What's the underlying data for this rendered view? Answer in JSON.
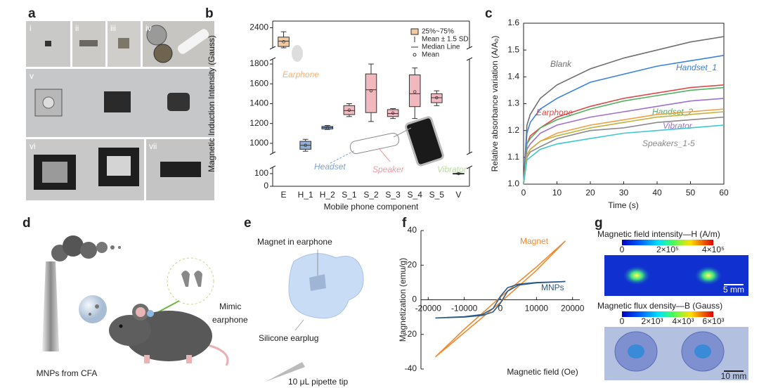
{
  "panel_labels": [
    "a",
    "b",
    "c",
    "d",
    "e",
    "f",
    "g"
  ],
  "panel_a": {
    "photo_labels": [
      "i",
      "ii",
      "iii",
      "iv",
      "v",
      "vi",
      "vii"
    ]
  },
  "chart_data": [
    {
      "type": "box",
      "xlabel": "Mobile phone component",
      "ylabel": "Magnetic Induction Intensity (Gauss)",
      "categories": [
        "E",
        "H_1",
        "H_2",
        "S_1",
        "S_2",
        "S_3",
        "S_4",
        "S_5",
        "V"
      ],
      "colors": [
        "#f5c9a0",
        "#8fb0d8",
        "#8fb0d8",
        "#f2b8bf",
        "#f2b8bf",
        "#f2b8bf",
        "#f2b8bf",
        "#f2b8bf",
        "#c8e4b0"
      ],
      "boxes": [
        {
          "q1": 2260,
          "q3": 2330,
          "median": 2300,
          "mean": 2295,
          "whisker_low": 2250,
          "whisker_high": 2370
        },
        {
          "q1": 940,
          "q3": 1020,
          "median": 980,
          "mean": 980,
          "whisker_low": 920,
          "whisker_high": 1040
        },
        {
          "q1": 1145,
          "q3": 1170,
          "median": 1160,
          "mean": 1158,
          "whisker_low": 1140,
          "whisker_high": 1180
        },
        {
          "q1": 1290,
          "q3": 1380,
          "median": 1330,
          "mean": 1335,
          "whisker_low": 1270,
          "whisker_high": 1400
        },
        {
          "q1": 1310,
          "q3": 1700,
          "median": 1540,
          "mean": 1530,
          "whisker_low": 1220,
          "whisker_high": 1800
        },
        {
          "q1": 1270,
          "q3": 1340,
          "median": 1300,
          "mean": 1305,
          "whisker_low": 1250,
          "whisker_high": 1350
        },
        {
          "q1": 1370,
          "q3": 1690,
          "median": 1500,
          "mean": 1520,
          "whisker_low": 1250,
          "whisker_high": 1760
        },
        {
          "q1": 1410,
          "q3": 1500,
          "median": 1460,
          "mean": 1460,
          "whisker_low": 1380,
          "whisker_high": 1530
        },
        {
          "q1": 98,
          "q3": 102,
          "median": 100,
          "mean": 100,
          "whisker_low": 96,
          "whisker_high": 104
        }
      ],
      "ylim": [
        0,
        2450
      ],
      "axis_breaks": [
        [
          0,
          150
        ],
        [
          900,
          1850
        ],
        [
          2250,
          2450
        ]
      ],
      "yticks": [
        0,
        100,
        1000,
        1200,
        1400,
        1600,
        1800,
        2400
      ],
      "legend": [
        "25%~75%",
        "Mean ± 1.5 SD",
        "Median Line",
        "Mean"
      ],
      "annotations": [
        {
          "text": "Earphone",
          "color": "#f5b27a"
        },
        {
          "text": "Headset",
          "color": "#7fa3d3"
        },
        {
          "text": "Speaker",
          "color": "#f09aa4"
        },
        {
          "text": "Vibrator",
          "color": "#b8dca0"
        }
      ]
    },
    {
      "type": "line",
      "xlabel": "Time (s)",
      "ylabel": "Relative absorbance variation (A/A₀)",
      "x": [
        0,
        1,
        2,
        5,
        10,
        20,
        30,
        40,
        50,
        60
      ],
      "xlim": [
        0,
        60
      ],
      "xticks": [
        0,
        10,
        20,
        30,
        40,
        50,
        60
      ],
      "ylim": [
        1.0,
        1.6
      ],
      "yticks": [
        {
          "value": 1.0,
          "label": "1.0"
        },
        1.1,
        1.2,
        1.3,
        1.4,
        1.5,
        1.6
      ],
      "series": [
        {
          "name": "Blank",
          "color": "#707070",
          "values": [
            1.0,
            1.22,
            1.26,
            1.32,
            1.37,
            1.43,
            1.47,
            1.5,
            1.53,
            1.55
          ]
        },
        {
          "name": "Handset_1",
          "color": "#3a82e0",
          "values": [
            1.0,
            1.19,
            1.23,
            1.28,
            1.32,
            1.38,
            1.41,
            1.44,
            1.46,
            1.48
          ]
        },
        {
          "name": "Earphone",
          "color": "#e04848",
          "values": [
            1.0,
            1.15,
            1.18,
            1.21,
            1.25,
            1.29,
            1.32,
            1.34,
            1.36,
            1.37
          ]
        },
        {
          "name": "Handset_2",
          "color": "#52b060",
          "values": [
            1.0,
            1.15,
            1.17,
            1.21,
            1.24,
            1.28,
            1.31,
            1.33,
            1.35,
            1.36
          ]
        },
        {
          "name": "Vibrator",
          "color": "#a070d0",
          "values": [
            1.0,
            1.13,
            1.15,
            1.19,
            1.22,
            1.25,
            1.27,
            1.29,
            1.31,
            1.32
          ]
        },
        {
          "name": "Speakers_1-5",
          "color": "#8a8a8a",
          "values": [
            1.0,
            1.1,
            1.12,
            1.14,
            1.17,
            1.2,
            1.21,
            1.23,
            1.24,
            1.25
          ]
        },
        {
          "color": "#f0a040",
          "values": [
            1.0,
            1.11,
            1.13,
            1.16,
            1.19,
            1.22,
            1.24,
            1.26,
            1.27,
            1.28
          ]
        },
        {
          "color": "#c8b040",
          "values": [
            1.0,
            1.11,
            1.13,
            1.16,
            1.18,
            1.21,
            1.23,
            1.25,
            1.26,
            1.27
          ]
        },
        {
          "color": "#40c8d0",
          "values": [
            1.0,
            1.09,
            1.1,
            1.13,
            1.15,
            1.17,
            1.19,
            1.2,
            1.21,
            1.22
          ]
        }
      ]
    },
    {
      "type": "line",
      "xlabel": "Magnetic field (Oe)",
      "ylabel": "Magnetization (emu/g)",
      "xlim": [
        -22000,
        22000
      ],
      "xticks": [
        -20000,
        -10000,
        0,
        10000,
        20000
      ],
      "ylim": [
        -40,
        40
      ],
      "yticks": [
        -40,
        -20,
        0,
        20,
        40
      ],
      "series": [
        {
          "name": "Magnet",
          "color": "#f08a30",
          "x": [
            18000,
            10000,
            0,
            -10000,
            -18000,
            -10000,
            0,
            10000,
            18000
          ],
          "values": [
            34,
            19,
            1.5,
            -17,
            -33,
            -19,
            -1.5,
            17,
            34
          ]
        },
        {
          "name": "MNPs",
          "color": "#2c5a88",
          "x": [
            18000,
            10000,
            5000,
            2000,
            0,
            -2000,
            -5000,
            -10000,
            -18000,
            -10000,
            -5000,
            -2000,
            0,
            2000,
            5000,
            10000,
            18000
          ],
          "values": [
            10.5,
            10,
            9,
            7,
            2,
            -5,
            -8.5,
            -9.8,
            -10.5,
            -10,
            -9,
            -7,
            -2,
            5,
            8.5,
            9.8,
            10.5
          ]
        }
      ]
    }
  ],
  "panel_d": {
    "source": "MNPs from CFA",
    "mimic": [
      "Mimic",
      "earphone"
    ]
  },
  "panel_e": {
    "magnet": "Magnet in earphone",
    "earplug": "Silicone earplug",
    "tip": "10 μL pipette tip"
  },
  "panel_g": {
    "h_title": "Magnetic field intensity—H (A/m)",
    "h_ticks": [
      "0",
      "2×10⁵",
      "4×10⁵"
    ],
    "h_scale": "5 mm",
    "b_title": "Magnetic flux density—B (Gauss)",
    "b_ticks": [
      "0",
      "2×10³",
      "4×10³",
      "6×10³"
    ],
    "b_scale": "10 mm"
  }
}
